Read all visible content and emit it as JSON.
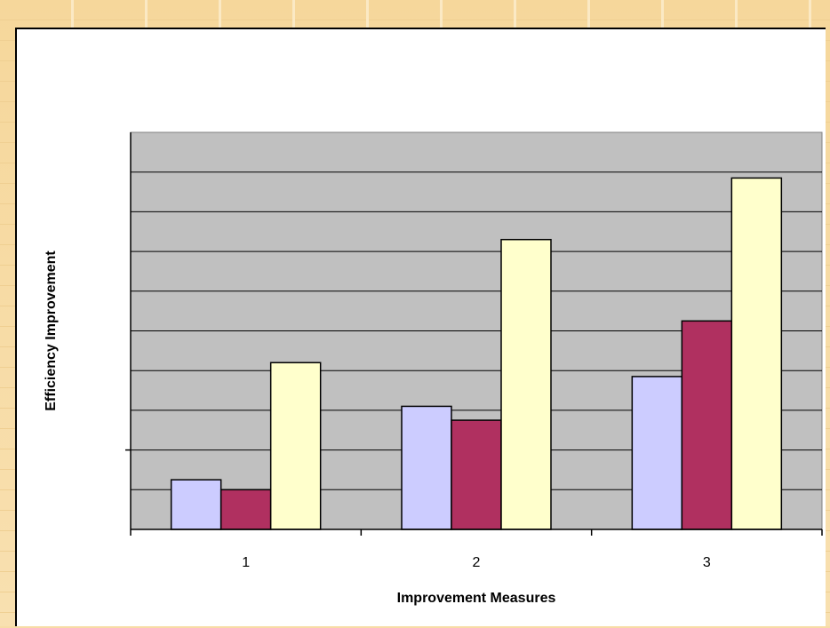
{
  "chart_data": {
    "type": "bar",
    "title": "",
    "xlabel": "Improvement Measures",
    "ylabel": "Efficiency Improvement",
    "categories": [
      "1",
      "2",
      "3"
    ],
    "series": [
      {
        "values": [
          1.25,
          3.1,
          3.85
        ]
      },
      {
        "values": [
          1.0,
          2.75,
          5.25
        ]
      },
      {
        "values": [
          4.2,
          7.3,
          8.85
        ]
      }
    ],
    "ylim": [
      0,
      10
    ],
    "grid": true,
    "legend": "none",
    "colors": [
      "#ccccff",
      "#b03060",
      "#ffffcc"
    ],
    "plot_background": "#c0c0c0"
  }
}
